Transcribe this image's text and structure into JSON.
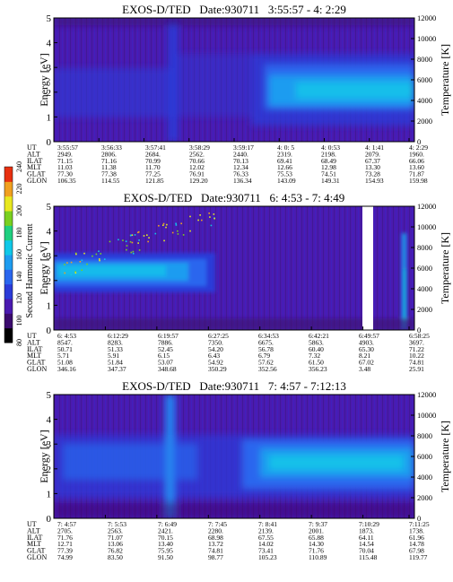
{
  "colorbar": {
    "label": "Second Harmonic Current",
    "ticks": [
      "80",
      "100",
      "120",
      "140",
      "160",
      "180",
      "200",
      "220",
      "240"
    ],
    "colors": [
      "#000000",
      "#3b0b6e",
      "#4a1ab0",
      "#2b3bd8",
      "#2a66ee",
      "#1e9cf0",
      "#10c8e8",
      "#20d080",
      "#7ad020",
      "#e8e820",
      "#f0a020",
      "#e83010"
    ]
  },
  "chart_data": [
    {
      "type": "heatmap",
      "title": "EXOS-D/TED   Date:930711   3:55:57 - 4: 2:29",
      "ylabel": "Energy [eV]",
      "y2label": "Temperature [K]",
      "ylim": [
        0,
        5
      ],
      "y2lim": [
        0,
        12000
      ],
      "yticks": [
        "0",
        "1",
        "2",
        "3",
        "4",
        "5"
      ],
      "y2ticks": [
        "0",
        "2000",
        "4000",
        "6000",
        "8000",
        "10000",
        "12000"
      ],
      "row_labels": [
        "UT",
        "ALT",
        "ILAT",
        "MLT",
        "GLAT",
        "GLON"
      ],
      "columns": [
        [
          "3:55:57",
          "2949.",
          "71.15",
          "11.03",
          "77.30",
          "106.35"
        ],
        [
          "3:56:33",
          "2806.",
          "71.16",
          "11.38",
          "77.38",
          "114.55"
        ],
        [
          "3:57:41",
          "2684.",
          "70.99",
          "11.70",
          "77.25",
          "121.85"
        ],
        [
          "3:58:29",
          "2562.",
          "70.66",
          "12.02",
          "76.91",
          "129.20"
        ],
        [
          "3:59:17",
          "2440.",
          "70.13",
          "12.34",
          "76.33",
          "136.34"
        ],
        [
          "4: 0: 5",
          "2319.",
          "69.41",
          "12.66",
          "75.53",
          "143.09"
        ],
        [
          "4: 0:53",
          "2198.",
          "68.49",
          "12.98",
          "74.51",
          "149.31"
        ],
        [
          "4: 1:41",
          "2079.",
          "67.37",
          "13.30",
          "73.28",
          "154.93"
        ],
        [
          "4: 2:29",
          "1960.",
          "66.06",
          "13.60",
          "71.87",
          "159.98"
        ]
      ]
    },
    {
      "type": "heatmap",
      "title": "EXOS-D/TED   Date:930711   6: 4:53 - 7: 4:49",
      "ylabel": "Energy [eV]",
      "y2label": "Temperature [K]",
      "ylim": [
        0,
        5
      ],
      "y2lim": [
        0,
        12000
      ],
      "yticks": [
        "0",
        "1",
        "2",
        "3",
        "4",
        "5"
      ],
      "y2ticks": [
        "0",
        "2000",
        "4000",
        "6000",
        "8000",
        "10000",
        "12000"
      ],
      "row_labels": [
        "UT",
        "ALT",
        "ILAT",
        "MLT",
        "GLAT",
        "GLON"
      ],
      "columns": [
        [
          "6: 4:53",
          "8547.",
          "50.71",
          "5.71",
          "51.08",
          "346.16"
        ],
        [
          "6:12:29",
          "8283.",
          "51.33",
          "5.91",
          "51.84",
          "347.37"
        ],
        [
          "6:19:57",
          "7886.",
          "52.45",
          "6.15",
          "53.07",
          "348.68"
        ],
        [
          "6:27:25",
          "7350.",
          "54.20",
          "6.43",
          "54.92",
          "350.29"
        ],
        [
          "6:34:53",
          "6675.",
          "56.78",
          "6.79",
          "57.62",
          "352.56"
        ],
        [
          "6:42:21",
          "5863.",
          "60.40",
          "7.32",
          "61.50",
          "356.23"
        ],
        [
          "6:49:57",
          "4903.",
          "65.30",
          "8.21",
          "67.02",
          "3.48"
        ],
        [
          "6:58:25",
          "3697.",
          "71.22",
          "10.22",
          "74.81",
          "25.91"
        ]
      ]
    },
    {
      "type": "heatmap",
      "title": "EXOS-D/TED   Date:930711   7: 4:57 - 7:12:13",
      "ylabel": "Energy [eV]",
      "y2label": "Temperature [K]",
      "ylim": [
        0,
        5
      ],
      "y2lim": [
        0,
        12000
      ],
      "yticks": [
        "0",
        "1",
        "2",
        "3",
        "4",
        "5"
      ],
      "y2ticks": [
        "0",
        "2000",
        "4000",
        "6000",
        "8000",
        "10000",
        "12000"
      ],
      "row_labels": [
        "UT",
        "ALT",
        "ILAT",
        "MLT",
        "GLAT",
        "GLON"
      ],
      "columns": [
        [
          "7: 4:57",
          "2705.",
          "71.76",
          "12.71",
          "77.39",
          "74.99"
        ],
        [
          "7: 5:53",
          "2563.",
          "71.07",
          "13.06",
          "76.82",
          "83.50"
        ],
        [
          "7: 6:49",
          "2421.",
          "70.15",
          "13.40",
          "75.95",
          "91.50"
        ],
        [
          "7: 7:45",
          "2280.",
          "68.98",
          "13.72",
          "74.81",
          "98.77"
        ],
        [
          "7: 8:41",
          "2139.",
          "67.55",
          "14.02",
          "73.41",
          "105.23"
        ],
        [
          "7: 9:37",
          "2001.",
          "65.88",
          "14.30",
          "71.76",
          "110.89"
        ],
        [
          "7:10:29",
          "1873.",
          "64.11",
          "14.54",
          "70.04",
          "115.48"
        ],
        [
          "7:11:25",
          "1738.",
          "61.96",
          "14.78",
          "67.98",
          "119.77"
        ]
      ]
    }
  ]
}
